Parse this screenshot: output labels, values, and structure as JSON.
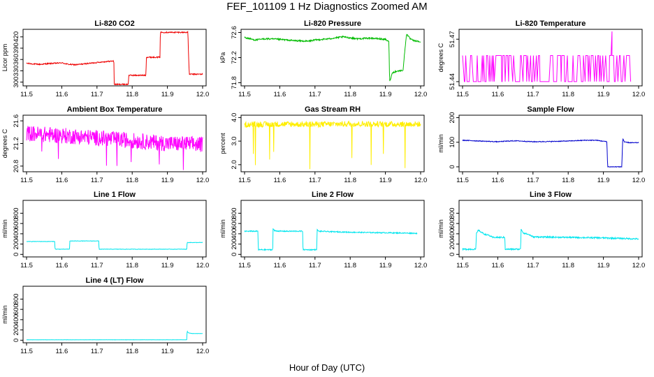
{
  "figure": {
    "title": "FEF_101109  1 Hz Diagnostics Zoomed AM",
    "xlabel": "Hour of Day (UTC)"
  },
  "chart_data": [
    {
      "type": "line",
      "title": "Li-820 CO2",
      "ylabel": "Licor ppm",
      "color": "#ee0000",
      "xlim": [
        11.5,
        12.0
      ],
      "ylim": [
        290,
        440
      ],
      "xticks": [
        11.5,
        11.6,
        11.7,
        11.8,
        11.9,
        12.0
      ],
      "xtick_labels": [
        "11.5",
        "11.6",
        "11.7",
        "11.8",
        "11.9",
        "12.0"
      ],
      "yticks": [
        300,
        330,
        360,
        390,
        420
      ],
      "ytick_labels": [
        "300",
        "330",
        "360",
        "390",
        "420"
      ],
      "noise": 1.5,
      "series": [
        {
          "name": "CO2",
          "x": [
            11.5,
            11.52,
            11.54,
            11.56,
            11.58,
            11.6,
            11.62,
            11.64,
            11.66,
            11.68,
            11.7,
            11.72,
            11.748,
            11.749,
            11.789,
            11.79,
            11.81,
            11.83,
            11.839,
            11.84,
            11.86,
            11.87,
            11.879,
            11.88,
            11.92,
            11.95,
            11.958,
            11.962,
            11.97,
            12.0
          ],
          "y": [
            350,
            348,
            347,
            349,
            350,
            351,
            347,
            346,
            348,
            350,
            352,
            354,
            356,
            294,
            294,
            318,
            318,
            318,
            318,
            366,
            366,
            366,
            366,
            432,
            432,
            432,
            432,
            321,
            321,
            321
          ]
        }
      ]
    },
    {
      "type": "line",
      "title": "Li-820 Pressure",
      "ylabel": "kPa",
      "color": "#00bb00",
      "xlim": [
        11.5,
        12.0
      ],
      "ylim": [
        71.75,
        72.65
      ],
      "xticks": [
        11.5,
        11.6,
        11.7,
        11.8,
        11.9,
        12.0
      ],
      "xtick_labels": [
        "11.5",
        "11.6",
        "11.7",
        "11.8",
        "11.9",
        "12.0"
      ],
      "yticks": [
        71.8,
        72.2,
        72.6
      ],
      "ytick_labels": [
        "71.8",
        "72.2",
        "72.6"
      ],
      "noise": 0.012,
      "series": [
        {
          "name": "Pressure",
          "x": [
            11.5,
            11.53,
            11.56,
            11.6,
            11.64,
            11.68,
            11.7,
            11.74,
            11.78,
            11.82,
            11.86,
            11.9,
            11.91,
            11.912,
            11.92,
            11.93,
            11.94,
            11.95,
            11.955,
            11.96,
            11.97,
            11.98,
            12.0
          ],
          "y": [
            72.52,
            72.48,
            72.5,
            72.49,
            72.47,
            72.46,
            72.48,
            72.5,
            72.53,
            72.5,
            72.51,
            72.49,
            72.45,
            71.82,
            71.96,
            71.98,
            71.99,
            72.0,
            72.3,
            72.58,
            72.5,
            72.47,
            72.45
          ]
        }
      ]
    },
    {
      "type": "line",
      "title": "Li-820 Temperature",
      "ylabel": "degrees C",
      "color": "#ff00ff",
      "xlim": [
        11.5,
        12.0
      ],
      "ylim": [
        51.437,
        51.477
      ],
      "xticks": [
        11.5,
        11.6,
        11.7,
        11.8,
        11.9,
        12.0
      ],
      "xtick_labels": [
        "11.5",
        "11.6",
        "11.7",
        "11.8",
        "11.9",
        "12.0"
      ],
      "yticks": [
        51.44,
        51.47
      ],
      "ytick_labels": [
        "51.44",
        "51.47"
      ],
      "noise": 0,
      "series": [
        {
          "name": "Temperature",
          "x": [
            11.5,
            11.98
          ],
          "y": [
            51.44,
            51.4585
          ]
        }
      ]
    },
    {
      "type": "line",
      "title": "Ambient Box Temperature",
      "ylabel": "degrees C",
      "color": "#ff00ff",
      "xlim": [
        11.5,
        12.0
      ],
      "ylim": [
        20.7,
        21.7
      ],
      "xticks": [
        11.5,
        11.6,
        11.7,
        11.8,
        11.9,
        12.0
      ],
      "xtick_labels": [
        "11.5",
        "11.6",
        "11.7",
        "11.8",
        "11.9",
        "12.0"
      ],
      "yticks": [
        20.8,
        21.2,
        21.6
      ],
      "ytick_labels": [
        "20.8",
        "21.2",
        "21.6"
      ],
      "noise": 0.14,
      "series": [
        {
          "name": "Box Temp",
          "x": [
            11.5,
            11.6,
            11.7,
            11.8,
            11.9,
            12.0
          ],
          "y": [
            21.38,
            21.34,
            21.3,
            21.25,
            21.2,
            21.18
          ]
        }
      ]
    },
    {
      "type": "line",
      "title": "Gas Stream RH",
      "ylabel": "percent",
      "color": "#ffee00",
      "xlim": [
        11.5,
        12.0
      ],
      "ylim": [
        1.7,
        4.1
      ],
      "xticks": [
        11.5,
        11.6,
        11.7,
        11.8,
        11.9,
        12.0
      ],
      "xtick_labels": [
        "11.5",
        "11.6",
        "11.7",
        "11.8",
        "11.9",
        "12.0"
      ],
      "yticks": [
        2.0,
        3.0,
        4.0
      ],
      "ytick_labels": [
        "2.0",
        "3.0",
        "4.0"
      ],
      "noise": 0.12,
      "series": [
        {
          "name": "RH",
          "x": [
            11.5,
            11.6,
            11.7,
            11.8,
            11.9,
            12.0
          ],
          "y": [
            3.7,
            3.72,
            3.71,
            3.73,
            3.72,
            3.72
          ]
        }
      ]
    },
    {
      "type": "line",
      "title": "Sample Flow",
      "ylabel": "ml/min",
      "color": "#0000cc",
      "xlim": [
        11.5,
        12.0
      ],
      "ylim": [
        -20,
        210
      ],
      "xticks": [
        11.5,
        11.6,
        11.7,
        11.8,
        11.9,
        12.0
      ],
      "xtick_labels": [
        "11.5",
        "11.6",
        "11.7",
        "11.8",
        "11.9",
        "12.0"
      ],
      "yticks": [
        0,
        100,
        200
      ],
      "ytick_labels": [
        "0",
        "100",
        "200"
      ],
      "noise": 1.5,
      "series": [
        {
          "name": "Sample Flow",
          "x": [
            11.5,
            11.55,
            11.6,
            11.62,
            11.65,
            11.7,
            11.75,
            11.8,
            11.85,
            11.88,
            11.9,
            11.91,
            11.912,
            11.95,
            11.952,
            11.955,
            11.96,
            11.98,
            12.0
          ],
          "y": [
            108,
            105,
            102,
            104,
            106,
            102,
            103,
            105,
            108,
            108,
            104,
            102,
            0,
            0,
            0,
            115,
            100,
            98,
            98
          ]
        }
      ]
    },
    {
      "type": "line",
      "title": "Line 1 Flow",
      "ylabel": "ml/min",
      "color": "#00e5ee",
      "xlim": [
        11.5,
        12.0
      ],
      "ylim": [
        -50,
        1050
      ],
      "xticks": [
        11.5,
        11.6,
        11.7,
        11.8,
        11.9,
        12.0
      ],
      "xtick_labels": [
        "11.5",
        "11.6",
        "11.7",
        "11.8",
        "11.9",
        "12.0"
      ],
      "yticks": [
        0,
        200,
        400,
        600,
        800
      ],
      "ytick_labels": [
        "0",
        "200",
        "400",
        "600",
        "800"
      ],
      "noise": 4,
      "series": [
        {
          "name": "Line 1",
          "x": [
            11.5,
            11.58,
            11.581,
            11.622,
            11.623,
            11.705,
            11.706,
            11.955,
            11.956,
            12.0
          ],
          "y": [
            250,
            250,
            100,
            100,
            260,
            260,
            100,
            100,
            230,
            230
          ]
        }
      ]
    },
    {
      "type": "line",
      "title": "Line 2 Flow",
      "ylabel": "ml/min",
      "color": "#00e5ee",
      "xlim": [
        11.5,
        12.0
      ],
      "ylim": [
        -50,
        1050
      ],
      "xticks": [
        11.5,
        11.6,
        11.7,
        11.8,
        11.9,
        12.0
      ],
      "xtick_labels": [
        "11.5",
        "11.6",
        "11.7",
        "11.8",
        "11.9",
        "12.0"
      ],
      "yticks": [
        0,
        200,
        400,
        600,
        800
      ],
      "ytick_labels": [
        "0",
        "200",
        "400",
        "600",
        "800"
      ],
      "noise": 10,
      "series": [
        {
          "name": "Line 2",
          "x": [
            11.5,
            11.538,
            11.539,
            11.58,
            11.581,
            11.585,
            11.6,
            11.665,
            11.666,
            11.705,
            11.706,
            11.71,
            11.75,
            11.8,
            11.85,
            11.9,
            11.95,
            11.99
          ],
          "y": [
            450,
            450,
            90,
            90,
            500,
            460,
            450,
            450,
            90,
            90,
            480,
            450,
            440,
            430,
            425,
            420,
            415,
            410
          ]
        }
      ]
    },
    {
      "type": "line",
      "title": "Line 3 Flow",
      "ylabel": "ml/min",
      "color": "#00e5ee",
      "xlim": [
        11.5,
        12.0
      ],
      "ylim": [
        -50,
        1050
      ],
      "xticks": [
        11.5,
        11.6,
        11.7,
        11.8,
        11.9,
        12.0
      ],
      "xtick_labels": [
        "11.5",
        "11.6",
        "11.7",
        "11.8",
        "11.9",
        "12.0"
      ],
      "yticks": [
        0,
        200,
        400,
        600,
        800
      ],
      "ytick_labels": [
        "0",
        "200",
        "400",
        "600",
        "800"
      ],
      "noise": 14,
      "series": [
        {
          "name": "Line 3",
          "x": [
            11.5,
            11.538,
            11.539,
            11.545,
            11.56,
            11.575,
            11.585,
            11.62,
            11.621,
            11.665,
            11.666,
            11.672,
            11.69,
            11.7,
            11.75,
            11.8,
            11.85,
            11.9,
            11.95,
            12.0
          ],
          "y": [
            100,
            100,
            400,
            470,
            400,
            370,
            330,
            330,
            100,
            100,
            500,
            420,
            380,
            340,
            335,
            330,
            325,
            320,
            310,
            300
          ]
        }
      ]
    },
    {
      "type": "line",
      "title": "Line 4 (LT) Flow",
      "ylabel": "ml/min",
      "color": "#00e5ee",
      "xlim": [
        11.5,
        12.0
      ],
      "ylim": [
        -50,
        1050
      ],
      "xticks": [
        11.5,
        11.6,
        11.7,
        11.8,
        11.9,
        12.0
      ],
      "xtick_labels": [
        "11.5",
        "11.6",
        "11.7",
        "11.8",
        "11.9",
        "12.0"
      ],
      "yticks": [
        0,
        200,
        400,
        600,
        800
      ],
      "ytick_labels": [
        "0",
        "200",
        "400",
        "600",
        "800"
      ],
      "noise": 2,
      "series": [
        {
          "name": "Line 4",
          "x": [
            11.5,
            11.6,
            11.7,
            11.8,
            11.9,
            11.955,
            11.956,
            11.958,
            11.962,
            11.97,
            12.0
          ],
          "y": [
            8,
            8,
            8,
            8,
            8,
            8,
            180,
            150,
            140,
            130,
            130
          ]
        }
      ]
    }
  ]
}
